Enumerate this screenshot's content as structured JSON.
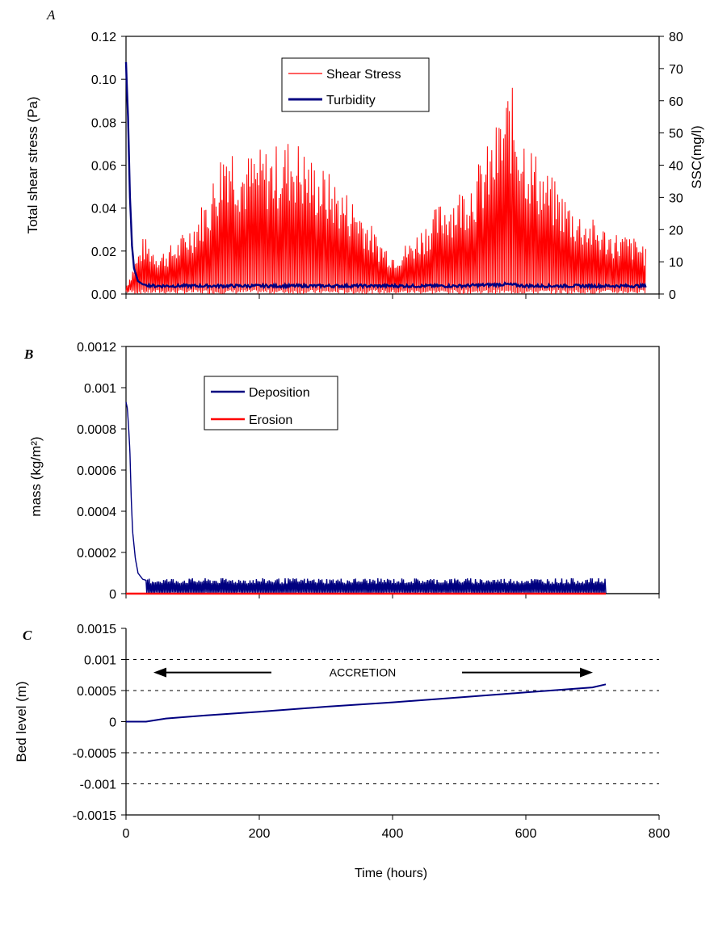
{
  "figure": {
    "x_axis": {
      "title": "Time (hours)",
      "range": [
        0,
        800
      ],
      "ticks": [
        "0",
        "200",
        "400",
        "600",
        "800"
      ]
    }
  },
  "chart_data": [
    {
      "id": "A",
      "panel_label": "A",
      "type": "line",
      "ylabel": "Total shear stress (Pa)",
      "ylabel2": "SSC(mg/l)",
      "ylim": [
        0,
        0.12
      ],
      "ylim2": [
        0,
        80
      ],
      "yticks": [
        "0.00",
        "0.02",
        "0.04",
        "0.06",
        "0.08",
        "0.10",
        "0.12"
      ],
      "yticks2": [
        "0",
        "10",
        "20",
        "30",
        "40",
        "50",
        "60",
        "70",
        "80"
      ],
      "legend": {
        "position": "top-center",
        "entries": [
          "Shear Stress",
          "Turbidity"
        ]
      },
      "colors": {
        "Shear Stress": "#ff0000",
        "Turbidity": "#000080"
      },
      "series": [
        {
          "name": "Shear Stress",
          "axis": "left",
          "note": "oscillating signal; peak envelope listed",
          "x": [
            0,
            25,
            50,
            75,
            100,
            125,
            150,
            175,
            200,
            225,
            250,
            275,
            300,
            325,
            350,
            375,
            400,
            425,
            450,
            475,
            500,
            525,
            550,
            575,
            600,
            625,
            650,
            675,
            700,
            725,
            750,
            775,
            780
          ],
          "values": [
            0.005,
            0.027,
            0.02,
            0.025,
            0.035,
            0.05,
            0.078,
            0.065,
            0.068,
            0.07,
            0.075,
            0.065,
            0.058,
            0.05,
            0.042,
            0.028,
            0.02,
            0.025,
            0.035,
            0.045,
            0.05,
            0.06,
            0.075,
            0.1,
            0.075,
            0.06,
            0.05,
            0.04,
            0.035,
            0.03,
            0.028,
            0.025,
            0.02
          ]
        },
        {
          "name": "Turbidity",
          "axis": "right",
          "x": [
            0,
            3,
            6,
            9,
            12,
            18,
            25,
            40,
            100,
            200,
            300,
            400,
            500,
            570,
            600,
            700,
            780
          ],
          "values": [
            72,
            55,
            30,
            15,
            8,
            4,
            3,
            2.5,
            2.5,
            2.5,
            2.5,
            2.5,
            2.5,
            3,
            2.5,
            2.5,
            2.5
          ]
        }
      ]
    },
    {
      "id": "B",
      "panel_label": "B",
      "type": "line",
      "ylabel": "mass (kg/m²)",
      "ylim": [
        0,
        0.0012
      ],
      "yticks": [
        "0",
        "0.0002",
        "0.0004",
        "0.0006",
        "0.0008",
        "0.001",
        "0.0012"
      ],
      "legend": {
        "position": "top-center",
        "entries": [
          "Deposition",
          "Erosion"
        ]
      },
      "colors": {
        "Deposition": "#000080",
        "Erosion": "#ff0000"
      },
      "series": [
        {
          "name": "Deposition",
          "x": [
            0,
            2,
            4,
            6,
            8,
            10,
            14,
            18,
            25,
            35,
            720
          ],
          "values": [
            0.00093,
            0.0009,
            0.0008,
            0.00068,
            0.00045,
            0.0003,
            0.00017,
            0.0001,
            7e-05,
            6e-05,
            6e-05
          ]
        },
        {
          "name": "Erosion",
          "x": [
            0,
            720
          ],
          "values": [
            0,
            0
          ]
        }
      ]
    },
    {
      "id": "C",
      "panel_label": "C",
      "type": "line",
      "ylabel": "Bed level (m)",
      "ylim": [
        -0.0015,
        0.0015
      ],
      "yticks": [
        "-0.0015",
        "-0.001",
        "-0.0005",
        "0",
        "0.0005",
        "0.001",
        "0.0015"
      ],
      "grid": "dotted horizontal",
      "annotation": "ACCRETION",
      "colors": {
        "Bed level": "#000080"
      },
      "series": [
        {
          "x": [
            0,
            30,
            60,
            120,
            200,
            300,
            400,
            500,
            600,
            700,
            720
          ],
          "values": [
            0,
            0,
            5e-05,
            0.0001,
            0.00016,
            0.00024,
            0.00031,
            0.00039,
            0.00047,
            0.00055,
            0.0006
          ]
        }
      ]
    }
  ]
}
